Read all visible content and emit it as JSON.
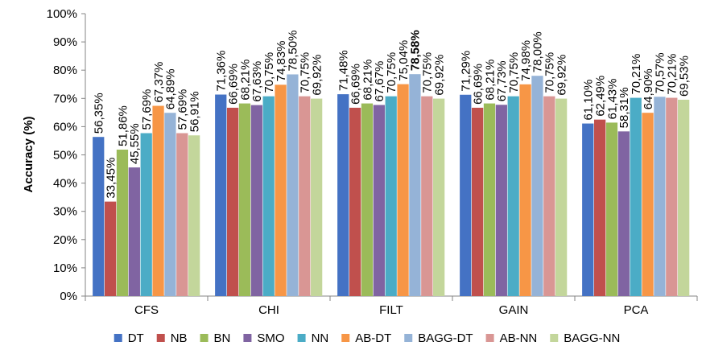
{
  "chart_data": {
    "type": "bar",
    "title": "",
    "xlabel": "",
    "ylabel": "Accuracy (%)",
    "ylim": [
      0,
      100
    ],
    "yticks": [
      "0%",
      "10%",
      "20%",
      "30%",
      "40%",
      "50%",
      "60%",
      "70%",
      "80%",
      "90%",
      "100%"
    ],
    "grid": false,
    "legend_position": "bottom",
    "categories": [
      "CFS",
      "CHI",
      "FILT",
      "GAIN",
      "PCA"
    ],
    "series": [
      {
        "name": "DT",
        "color": "#4472C4",
        "values": [
          56.35,
          71.36,
          71.48,
          71.29,
          61.1
        ],
        "labels": [
          "56,35%",
          "71,36%",
          "71,48%",
          "71,29%",
          "61,10%"
        ]
      },
      {
        "name": "NB",
        "color": "#C0504D",
        "values": [
          33.45,
          66.69,
          66.69,
          66.69,
          62.49
        ],
        "labels": [
          "33,45%",
          "66,69%",
          "66,69%",
          "66,69%",
          "62,49%"
        ]
      },
      {
        "name": "BN",
        "color": "#9BBB59",
        "values": [
          51.86,
          68.21,
          68.21,
          68.21,
          61.43
        ],
        "labels": [
          "51,86%",
          "68,21%",
          "68,21%",
          "68,21%",
          "61,43%"
        ]
      },
      {
        "name": "SMO",
        "color": "#8064A2",
        "values": [
          45.55,
          67.63,
          67.67,
          67.73,
          58.31
        ],
        "labels": [
          "45,55%",
          "67,63%",
          "67,67%",
          "67,73%",
          "58,31%"
        ]
      },
      {
        "name": "NN",
        "color": "#4BACC6",
        "values": [
          57.69,
          70.75,
          70.75,
          70.75,
          70.21
        ],
        "labels": [
          "57,69%",
          "70,75%",
          "70,75%",
          "70,75%",
          "70,21%"
        ]
      },
      {
        "name": "AB-DT",
        "color": "#F79646",
        "values": [
          67.37,
          74.83,
          75.04,
          74.98,
          64.9
        ],
        "labels": [
          "67,37%",
          "74,83%",
          "75,04%",
          "74,98%",
          "64,90%"
        ]
      },
      {
        "name": "BAGG-DT",
        "color": "#95B3D7",
        "values": [
          64.89,
          78.5,
          78.58,
          78.0,
          70.57
        ],
        "labels": [
          "64,89%",
          "78,50%",
          "78,58%",
          "78,00%",
          "70,57%"
        ]
      },
      {
        "name": "AB-NN",
        "color": "#D99694",
        "values": [
          57.69,
          70.75,
          70.75,
          70.75,
          70.21
        ],
        "labels": [
          "57,69%",
          "70,75%",
          "70,75%",
          "70,75%",
          "70,21%"
        ]
      },
      {
        "name": "BAGG-NN",
        "color": "#C3D69B",
        "values": [
          56.91,
          69.92,
          69.92,
          69.92,
          69.53
        ],
        "labels": [
          "56,91%",
          "69,92%",
          "69,92%",
          "69,92%",
          "69,53%"
        ]
      }
    ],
    "highlight": {
      "series": "BAGG-DT",
      "category": "FILT",
      "color": "#FF0000"
    }
  }
}
